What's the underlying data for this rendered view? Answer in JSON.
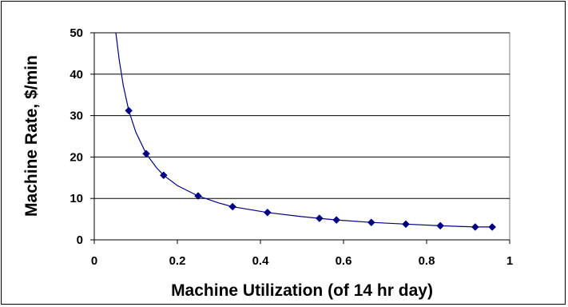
{
  "chart_data": {
    "type": "line",
    "title": "",
    "xlabel": "Machine Utilization (of 14 hr day)",
    "ylabel": "Machine Rate, $/min",
    "xlim": [
      0,
      1
    ],
    "ylim": [
      0,
      50
    ],
    "xticks": [
      "0",
      "0.2",
      "0.4",
      "0.6",
      "0.8",
      "1"
    ],
    "yticks": [
      "0",
      "10",
      "20",
      "30",
      "40",
      "50"
    ],
    "grid": "horizontal",
    "legend": "none",
    "series": [
      {
        "type": "scatter",
        "marker": "diamond",
        "color": "#000080",
        "x": [
          0.083,
          0.125,
          0.167,
          0.25,
          0.333,
          0.417,
          0.542,
          0.583,
          0.667,
          0.75,
          0.833,
          0.917,
          0.958
        ],
        "y": [
          31.2,
          20.8,
          15.6,
          10.6,
          8.0,
          6.6,
          5.2,
          4.8,
          4.2,
          3.8,
          3.4,
          3.1,
          3.1
        ]
      },
      {
        "type": "line",
        "color": "#000080",
        "x": [
          0.052,
          0.06,
          0.07,
          0.083,
          0.1,
          0.125,
          0.15,
          0.167,
          0.2,
          0.25,
          0.3,
          0.333,
          0.417,
          0.5,
          0.542,
          0.583,
          0.667,
          0.75,
          0.833,
          0.917,
          0.958
        ],
        "y": [
          50,
          43.5,
          37.2,
          31.2,
          26.0,
          20.8,
          17.4,
          15.6,
          13.1,
          10.6,
          8.9,
          8.0,
          6.6,
          5.6,
          5.2,
          4.8,
          4.2,
          3.8,
          3.4,
          3.1,
          3.1
        ]
      }
    ]
  }
}
